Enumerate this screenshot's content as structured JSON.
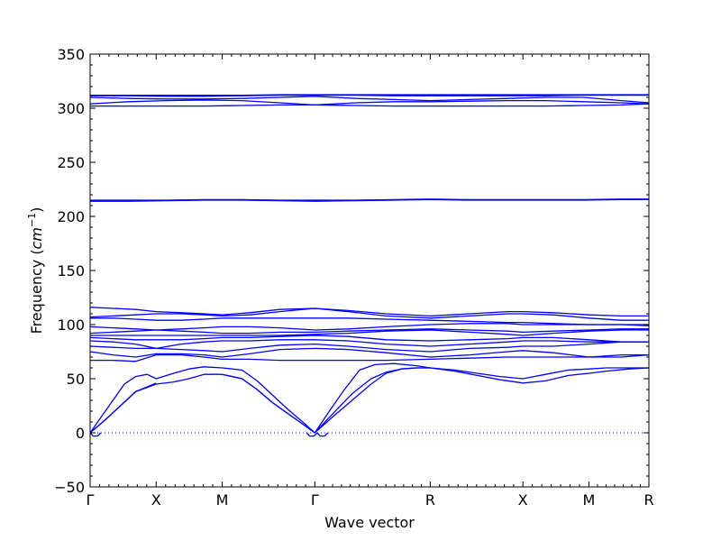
{
  "chart_data": {
    "type": "line",
    "xlabel": "Wave vector",
    "ylabel": "Frequency (",
    "ylabel_math": "cm",
    "ylabel_exp": "−1",
    "ylabel_close": ")",
    "ylim": [
      -50,
      350
    ],
    "y_ticks": [
      -50,
      0,
      50,
      100,
      150,
      200,
      250,
      300,
      350
    ],
    "y_tick_labels": [
      "−50",
      "0",
      "50",
      "100",
      "150",
      "200",
      "250",
      "300",
      "350"
    ],
    "x_range": [
      0,
      7.36
    ],
    "x_ticks": [
      {
        "x": 0.0,
        "label": "Γ"
      },
      {
        "x": 0.87,
        "label": "X"
      },
      {
        "x": 1.74,
        "label": "M"
      },
      {
        "x": 2.96,
        "label": "Γ"
      },
      {
        "x": 4.48,
        "label": "R"
      },
      {
        "x": 5.7,
        "label": "X"
      },
      {
        "x": 6.57,
        "label": "M"
      },
      {
        "x": 7.36,
        "label": "R"
      }
    ],
    "zero_line": 0,
    "colors": {
      "bands": "#0000ff",
      "zero_line": "#0000ff"
    },
    "series": [
      {
        "x": [
          0.0,
          0.15,
          0.3,
          0.45,
          0.6,
          0.75,
          0.87
        ],
        "y": [
          0,
          15,
          30,
          45,
          52,
          54,
          50
        ]
      },
      {
        "x": [
          0.0,
          0.2,
          0.4,
          0.6,
          0.87
        ],
        "y": [
          0,
          12,
          25,
          38,
          45
        ]
      },
      {
        "x": [
          0.0,
          0.2,
          0.4,
          0.6,
          0.87
        ],
        "y": [
          0,
          12,
          25,
          38,
          46
        ]
      },
      {
        "x": [
          0.87,
          1.1,
          1.3,
          1.5,
          1.74
        ],
        "y": [
          50,
          55,
          59,
          61,
          60
        ]
      },
      {
        "x": [
          0.87,
          1.1,
          1.3,
          1.5,
          1.74
        ],
        "y": [
          45,
          47,
          50,
          54,
          54
        ]
      },
      {
        "x": [
          1.74,
          2.0,
          2.2,
          2.4,
          2.6,
          2.8,
          2.96
        ],
        "y": [
          60,
          58,
          48,
          35,
          22,
          10,
          0
        ]
      },
      {
        "x": [
          1.74,
          2.0,
          2.2,
          2.4,
          2.6,
          2.8,
          2.96
        ],
        "y": [
          54,
          50,
          40,
          28,
          18,
          8,
          0
        ]
      },
      {
        "x": [
          1.74,
          2.0,
          2.2,
          2.4,
          2.6,
          2.8,
          2.96
        ],
        "y": [
          54,
          50,
          40,
          28,
          18,
          8,
          0
        ]
      },
      {
        "x": [
          2.96,
          3.2,
          3.45,
          3.7,
          3.9,
          4.1,
          4.3,
          4.48
        ],
        "y": [
          0,
          18,
          36,
          50,
          56,
          59,
          60,
          60
        ]
      },
      {
        "x": [
          2.96,
          3.2,
          3.45,
          3.7,
          3.9,
          4.1,
          4.3,
          4.48
        ],
        "y": [
          0,
          15,
          30,
          45,
          55,
          59,
          60,
          60
        ]
      },
      {
        "x": [
          2.96,
          3.15,
          3.35,
          3.55,
          3.75,
          4.0,
          4.3,
          4.48
        ],
        "y": [
          0,
          20,
          40,
          58,
          63,
          64,
          62,
          60
        ]
      },
      {
        "x": [
          4.48,
          4.8,
          5.1,
          5.4,
          5.7
        ],
        "y": [
          60,
          57,
          53,
          49,
          46
        ]
      },
      {
        "x": [
          4.48,
          4.8,
          5.1,
          5.4,
          5.7
        ],
        "y": [
          60,
          58,
          55,
          52,
          50
        ]
      },
      {
        "x": [
          5.7,
          6.0,
          6.3,
          6.57
        ],
        "y": [
          46,
          48,
          53,
          55
        ]
      },
      {
        "x": [
          5.7,
          6.0,
          6.3,
          6.57
        ],
        "y": [
          50,
          54,
          58,
          59
        ]
      },
      {
        "x": [
          6.57,
          6.8,
          7.1,
          7.36
        ],
        "y": [
          55,
          57,
          59,
          60
        ]
      },
      {
        "x": [
          6.57,
          6.8,
          7.1,
          7.36
        ],
        "y": [
          59,
          60,
          60,
          60
        ]
      },
      {
        "x": [
          0.0,
          0.3,
          0.6,
          0.87,
          1.2,
          1.5,
          1.74,
          2.1,
          2.5,
          2.96,
          3.4,
          3.9,
          4.48,
          5.0,
          5.5,
          5.7,
          6.1,
          6.57,
          7.0,
          7.36
        ],
        "y": [
          67,
          67,
          66,
          72,
          72,
          70,
          68,
          68,
          67,
          67,
          67,
          67,
          68,
          69,
          70,
          70,
          70,
          70,
          72,
          72
        ]
      },
      {
        "x": [
          0.0,
          0.3,
          0.6,
          0.87,
          1.2,
          1.5,
          1.74,
          2.1,
          2.5,
          2.96,
          3.4,
          3.9,
          4.48,
          5.0,
          5.5,
          5.7,
          6.1,
          6.57,
          7.0,
          7.36
        ],
        "y": [
          75,
          72,
          70,
          73,
          73,
          72,
          70,
          73,
          77,
          78,
          77,
          74,
          70,
          72,
          75,
          76,
          74,
          70,
          70,
          72
        ]
      },
      {
        "x": [
          0.0,
          0.3,
          0.6,
          0.87,
          1.2,
          1.5,
          1.74,
          2.1,
          2.5,
          2.96,
          3.4,
          3.9,
          4.48,
          5.0,
          5.5,
          5.7,
          6.1,
          6.57,
          7.0,
          7.36
        ],
        "y": [
          80,
          79,
          78,
          78,
          77,
          76,
          75,
          78,
          81,
          82,
          80,
          77,
          75,
          78,
          79,
          80,
          80,
          82,
          84,
          84
        ]
      },
      {
        "x": [
          0.0,
          0.3,
          0.6,
          0.87,
          1.2,
          1.5,
          1.74,
          2.1,
          2.5,
          2.96,
          3.4,
          3.9,
          4.48,
          5.0,
          5.5,
          5.7,
          6.1,
          6.57,
          7.0,
          7.36
        ],
        "y": [
          85,
          84,
          82,
          78,
          82,
          84,
          85,
          85,
          86,
          86,
          85,
          82,
          80,
          82,
          84,
          85,
          85,
          84,
          84,
          84
        ]
      },
      {
        "x": [
          0.0,
          0.3,
          0.6,
          0.87,
          1.2,
          1.5,
          1.74,
          2.1,
          2.5,
          2.96,
          3.4,
          3.9,
          4.48,
          5.0,
          5.5,
          5.7,
          6.1,
          6.57,
          7.0,
          7.36
        ],
        "y": [
          88,
          87,
          86,
          86,
          86,
          87,
          88,
          88,
          89,
          90,
          89,
          86,
          85,
          86,
          87,
          88,
          88,
          86,
          84,
          84
        ]
      },
      {
        "x": [
          0.0,
          0.3,
          0.6,
          0.87,
          1.2,
          1.5,
          1.74,
          2.1,
          2.5,
          2.96,
          3.4,
          3.9,
          4.48,
          5.0,
          5.5,
          5.7,
          6.1,
          6.57,
          7.0,
          7.36
        ],
        "y": [
          90,
          90,
          90,
          90,
          90,
          90,
          90,
          90,
          90,
          91,
          92,
          94,
          95,
          93,
          91,
          90,
          92,
          94,
          95,
          95
        ]
      },
      {
        "x": [
          0.0,
          0.3,
          0.6,
          0.87,
          1.2,
          1.5,
          1.74,
          2.1,
          2.5,
          2.96,
          3.4,
          3.9,
          4.48,
          5.0,
          5.5,
          5.7,
          6.1,
          6.57,
          7.0,
          7.36
        ],
        "y": [
          92,
          93,
          94,
          95,
          94,
          93,
          92,
          92,
          93,
          93,
          94,
          95,
          96,
          95,
          94,
          93,
          94,
          95,
          96,
          96
        ]
      },
      {
        "x": [
          0.0,
          0.3,
          0.6,
          0.87,
          1.2,
          1.5,
          1.74,
          2.1,
          2.5,
          2.96,
          3.4,
          3.9,
          4.48,
          5.0,
          5.5,
          5.7,
          6.1,
          6.57,
          7.0,
          7.36
        ],
        "y": [
          98,
          97,
          96,
          95,
          96,
          97,
          98,
          98,
          97,
          95,
          96,
          98,
          100,
          101,
          101,
          100,
          100,
          100,
          100,
          100
        ]
      },
      {
        "x": [
          0.0,
          0.3,
          0.6,
          0.87,
          1.2,
          1.5,
          1.74,
          2.1,
          2.5,
          2.96,
          3.4,
          3.9,
          4.48,
          5.0,
          5.5,
          5.7,
          6.1,
          6.57,
          7.0,
          7.36
        ],
        "y": [
          106,
          106,
          105,
          104,
          104,
          105,
          106,
          106,
          106,
          106,
          106,
          105,
          104,
          103,
          102,
          102,
          101,
          100,
          100,
          99
        ]
      },
      {
        "x": [
          0.0,
          0.3,
          0.6,
          0.87,
          1.2,
          1.5,
          1.74,
          2.1,
          2.5,
          2.96,
          3.4,
          3.9,
          4.48,
          5.0,
          5.5,
          5.7,
          6.1,
          6.57,
          7.0,
          7.36
        ],
        "y": [
          107,
          108,
          109,
          110,
          110,
          109,
          108,
          109,
          112,
          115,
          112,
          108,
          106,
          108,
          110,
          110,
          109,
          106,
          104,
          104
        ]
      },
      {
        "x": [
          0.0,
          0.3,
          0.6,
          0.87,
          1.2,
          1.5,
          1.74,
          2.1,
          2.5,
          2.96,
          3.4,
          3.9,
          4.48,
          5.0,
          5.5,
          5.7,
          6.1,
          6.57,
          7.0,
          7.36
        ],
        "y": [
          116,
          115,
          114,
          112,
          111,
          110,
          109,
          111,
          114,
          115,
          113,
          110,
          108,
          110,
          112,
          112,
          111,
          109,
          108,
          108
        ]
      },
      {
        "x": [
          0.0,
          0.5,
          1.0,
          1.5,
          2.0,
          2.5,
          2.96,
          3.5,
          4.0,
          4.48,
          5.0,
          5.5,
          6.0,
          6.5,
          7.0,
          7.36
        ],
        "y": [
          214,
          214,
          214.5,
          215,
          215,
          214.5,
          214,
          214.5,
          215,
          215.5,
          215,
          215,
          215,
          215,
          215.5,
          215.5
        ]
      },
      {
        "x": [
          0.0,
          0.5,
          1.0,
          1.5,
          2.0,
          2.5,
          2.96,
          3.5,
          4.0,
          4.48,
          5.0,
          5.5,
          6.0,
          6.5,
          7.0,
          7.36
        ],
        "y": [
          215,
          215,
          215,
          215.5,
          215.5,
          215,
          215,
          215,
          215.5,
          216,
          215.5,
          215.5,
          215.5,
          215.5,
          216,
          216
        ]
      },
      {
        "x": [
          0.0,
          0.5,
          1.0,
          1.5,
          2.0,
          2.5,
          2.96,
          3.5,
          4.0,
          4.48,
          5.0,
          5.5,
          6.0,
          6.5,
          7.0,
          7.36
        ],
        "y": [
          302,
          302,
          302,
          302,
          302.5,
          303,
          303,
          302.5,
          302,
          302,
          302,
          302,
          302,
          302.5,
          303,
          304
        ]
      },
      {
        "x": [
          0.0,
          0.5,
          1.0,
          1.5,
          2.0,
          2.5,
          2.96,
          3.5,
          4.0,
          4.48,
          5.0,
          5.5,
          6.0,
          6.5,
          7.0,
          7.36
        ],
        "y": [
          304,
          306,
          307,
          307.5,
          307,
          305,
          303,
          305,
          306,
          306,
          306.5,
          307,
          307,
          306,
          305,
          304
        ]
      },
      {
        "x": [
          0.0,
          0.5,
          1.0,
          1.5,
          2.0,
          2.5,
          2.96,
          3.5,
          4.0,
          4.48,
          5.0,
          5.5,
          6.0,
          6.5,
          7.0,
          7.36
        ],
        "y": [
          310,
          309,
          308.5,
          308.5,
          309,
          310,
          311,
          309,
          308,
          307,
          308,
          309,
          310,
          310,
          307,
          305
        ]
      },
      {
        "x": [
          0.0,
          0.5,
          1.0,
          1.5,
          2.0,
          2.5,
          2.96,
          3.5,
          4.0,
          4.48,
          5.0,
          5.5,
          6.0,
          6.5,
          7.0,
          7.36
        ],
        "y": [
          311.5,
          311.5,
          311,
          311,
          311.5,
          312,
          312,
          312,
          311.5,
          311.5,
          311.5,
          311.5,
          311.5,
          312,
          312,
          312
        ]
      },
      {
        "x": [
          0.0,
          0.5,
          1.0,
          1.5,
          2.0,
          2.5,
          2.96,
          3.5,
          4.0,
          4.48,
          5.0,
          5.5,
          6.0,
          6.5,
          7.0,
          7.36
        ],
        "y": [
          312,
          312,
          312,
          312,
          312,
          312.5,
          312.5,
          312.5,
          312.5,
          312.5,
          312.5,
          312.5,
          312.5,
          312.5,
          312.5,
          312.5
        ]
      },
      {
        "x": [
          0.0,
          0.04,
          0.1,
          0.14
        ],
        "y": [
          0,
          -3,
          -3,
          0
        ]
      },
      {
        "x": [
          2.85,
          2.89,
          2.95,
          2.99
        ],
        "y": [
          0,
          -3,
          -3,
          0
        ]
      },
      {
        "x": [
          2.99,
          3.03,
          3.09,
          3.13
        ],
        "y": [
          0,
          -3,
          -3,
          0
        ]
      }
    ]
  }
}
